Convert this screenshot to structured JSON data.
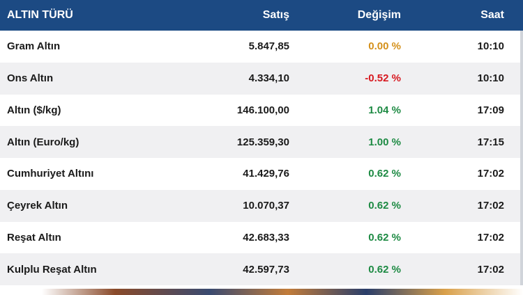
{
  "header": {
    "name": "ALTIN TÜRÜ",
    "sale": "Satış",
    "change": "Değişim",
    "time": "Saat"
  },
  "colors": {
    "header_bg": "#1c4a83",
    "neutral": "#d4901a",
    "negative": "#d71920",
    "positive": "#1d8a43"
  },
  "rows": [
    {
      "name": "Gram Altın",
      "sale": "5.847,85",
      "change": "0.00 %",
      "trend": "neutral",
      "time": "10:10"
    },
    {
      "name": "Ons Altın",
      "sale": "4.334,10",
      "change": "-0.52 %",
      "trend": "negative",
      "time": "10:10"
    },
    {
      "name": "Altın ($/kg)",
      "sale": "146.100,00",
      "change": "1.04 %",
      "trend": "positive",
      "time": "17:09"
    },
    {
      "name": "Altın (Euro/kg)",
      "sale": "125.359,30",
      "change": "1.00 %",
      "trend": "positive",
      "time": "17:15"
    },
    {
      "name": "Cumhuriyet Altını",
      "sale": "41.429,76",
      "change": "0.62 %",
      "trend": "positive",
      "time": "17:02"
    },
    {
      "name": "Çeyrek Altın",
      "sale": "10.070,37",
      "change": "0.62 %",
      "trend": "positive",
      "time": "17:02"
    },
    {
      "name": "Reşat Altın",
      "sale": "42.683,33",
      "change": "0.62 %",
      "trend": "positive",
      "time": "17:02"
    },
    {
      "name": "Kulplu Reşat Altın",
      "sale": "42.597,73",
      "change": "0.62 %",
      "trend": "positive",
      "time": "17:02"
    }
  ]
}
